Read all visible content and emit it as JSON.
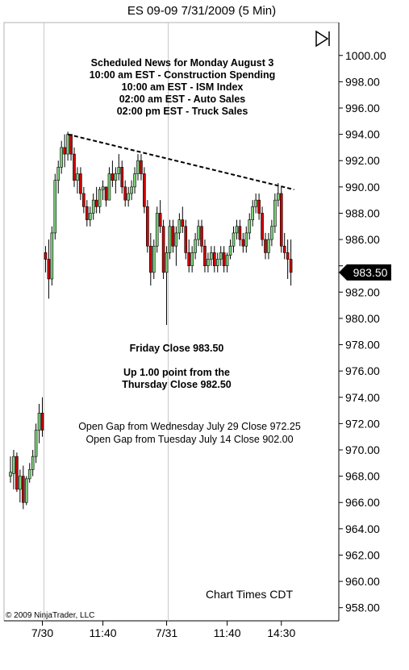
{
  "window": {
    "title": "ES 09-09  7/31/2009 (5 Min)"
  },
  "toolbar": {
    "play_icon": "skip-forward-icon"
  },
  "news": [
    "Scheduled News for Monday August 3",
    "10:00 am EST - Construction Spending",
    "10:00 am EST - ISM Index",
    "02:00 am EST - Auto Sales",
    "02:00 pm EST - Truck Sales"
  ],
  "close_note": "Friday Close 983.50",
  "change_note": [
    "Up 1.00 point from the",
    "Thursday Close 982.50"
  ],
  "gap_notes": [
    "Open Gap from Wednesday July 29 Close 972.25",
    "Open Gap from Tuesday July 14 Close 902.00"
  ],
  "chart_times": "Chart Times CDT",
  "copyright": "© 2009 NinjaTrader, LLC",
  "last_price": "983.50",
  "colors": {
    "up": "#7ed07e",
    "down": "#cc0000",
    "wick": "#000000",
    "price_tag": "#000000"
  },
  "chart_data": {
    "type": "candlestick",
    "title": "ES 09-09  7/31/2009 (5 Min)",
    "ylim": [
      957,
      1002.5
    ],
    "y_ticks": [
      "958.00",
      "960.00",
      "962.00",
      "964.00",
      "966.00",
      "968.00",
      "970.00",
      "972.00",
      "974.00",
      "976.00",
      "978.00",
      "980.00",
      "982.00",
      "984.00",
      "986.00",
      "988.00",
      "990.00",
      "992.00",
      "994.00",
      "996.00",
      "998.00",
      "1000.00"
    ],
    "x_ticks": [
      {
        "label": "7/30",
        "bar": 10
      },
      {
        "label": "11:40",
        "bar": 29
      },
      {
        "label": "7/31",
        "bar": 49
      },
      {
        "label": "11:40",
        "bar": 68
      },
      {
        "label": "14:30",
        "bar": 85
      }
    ],
    "day_separators": [
      10.5,
      49.5
    ],
    "trendline": {
      "style": "dashed",
      "from": {
        "bar": 18,
        "price": 994.0
      },
      "to": {
        "bar": 89,
        "price": 989.8
      }
    },
    "bars": [
      [
        968.0,
        969.5,
        967.5,
        968.3
      ],
      [
        968.2,
        970.0,
        967.0,
        969.5
      ],
      [
        969.5,
        969.8,
        966.8,
        967.0
      ],
      [
        967.0,
        968.5,
        966.0,
        968.0
      ],
      [
        968.0,
        968.8,
        965.5,
        966.0
      ],
      [
        966.0,
        968.0,
        965.8,
        967.8
      ],
      [
        967.8,
        969.0,
        967.5,
        968.5
      ],
      [
        968.5,
        970.0,
        968.0,
        969.5
      ],
      [
        969.5,
        972.0,
        969.0,
        971.5
      ],
      [
        971.5,
        973.5,
        970.5,
        972.8
      ],
      [
        972.8,
        974.0,
        971.0,
        971.5
      ],
      [
        985.0,
        985.5,
        983.5,
        984.5
      ],
      [
        984.5,
        986.0,
        981.5,
        983.0
      ],
      [
        983.0,
        987.0,
        982.5,
        986.5
      ],
      [
        986.5,
        991.0,
        986.0,
        990.5
      ],
      [
        990.5,
        992.0,
        989.5,
        991.5
      ],
      [
        991.5,
        993.5,
        991.0,
        993.0
      ],
      [
        993.0,
        994.0,
        991.5,
        992.5
      ],
      [
        992.5,
        994.2,
        992.0,
        994.0
      ],
      [
        994.0,
        994.0,
        992.0,
        992.5
      ],
      [
        992.5,
        993.0,
        990.0,
        990.5
      ],
      [
        990.5,
        991.5,
        989.5,
        991.0
      ],
      [
        991.0,
        991.5,
        989.0,
        989.5
      ],
      [
        989.5,
        990.0,
        988.0,
        988.5
      ],
      [
        988.5,
        989.0,
        987.0,
        987.5
      ],
      [
        987.5,
        988.5,
        987.0,
        988.0
      ],
      [
        988.0,
        989.5,
        987.5,
        989.0
      ],
      [
        989.0,
        990.0,
        988.0,
        988.5
      ],
      [
        988.5,
        990.0,
        988.0,
        989.8
      ],
      [
        989.8,
        990.5,
        989.0,
        990.0
      ],
      [
        990.0,
        990.0,
        988.5,
        989.0
      ],
      [
        989.0,
        991.5,
        989.0,
        991.0
      ],
      [
        991.0,
        992.0,
        990.0,
        990.5
      ],
      [
        990.5,
        991.5,
        989.5,
        991.0
      ],
      [
        991.0,
        992.5,
        990.5,
        991.5
      ],
      [
        991.5,
        992.0,
        989.5,
        990.0
      ],
      [
        990.0,
        990.5,
        988.5,
        989.0
      ],
      [
        989.0,
        990.0,
        988.5,
        989.5
      ],
      [
        989.5,
        990.5,
        989.0,
        990.0
      ],
      [
        990.0,
        991.5,
        989.5,
        991.0
      ],
      [
        991.0,
        992.5,
        990.5,
        992.0
      ],
      [
        992.0,
        992.5,
        990.5,
        991.0
      ],
      [
        991.0,
        991.5,
        988.0,
        988.5
      ],
      [
        988.5,
        989.0,
        985.0,
        985.5
      ],
      [
        985.5,
        986.5,
        982.5,
        983.5
      ],
      [
        983.5,
        986.0,
        983.0,
        985.5
      ],
      [
        985.5,
        988.5,
        985.0,
        988.0
      ],
      [
        988.0,
        989.0,
        986.5,
        987.0
      ],
      [
        987.0,
        987.5,
        983.0,
        983.5
      ],
      [
        983.5,
        985.5,
        979.5,
        985.0
      ],
      [
        985.0,
        987.5,
        984.5,
        987.0
      ],
      [
        987.0,
        987.5,
        985.0,
        985.5
      ],
      [
        985.5,
        987.0,
        984.0,
        986.5
      ],
      [
        986.5,
        988.0,
        986.0,
        987.5
      ],
      [
        987.5,
        988.5,
        986.5,
        987.0
      ],
      [
        987.0,
        987.5,
        984.5,
        985.0
      ],
      [
        985.0,
        986.0,
        983.5,
        984.0
      ],
      [
        984.0,
        985.5,
        983.5,
        985.0
      ],
      [
        985.0,
        986.5,
        984.5,
        986.0
      ],
      [
        986.0,
        987.5,
        985.5,
        987.0
      ],
      [
        987.0,
        987.5,
        985.0,
        985.5
      ],
      [
        985.5,
        986.0,
        983.5,
        984.0
      ],
      [
        984.0,
        985.0,
        983.5,
        984.5
      ],
      [
        984.5,
        985.5,
        984.0,
        985.0
      ],
      [
        985.0,
        985.5,
        983.5,
        984.0
      ],
      [
        984.0,
        985.0,
        983.5,
        984.5
      ],
      [
        984.5,
        985.5,
        984.0,
        985.0
      ],
      [
        985.0,
        985.5,
        983.5,
        984.0
      ],
      [
        984.0,
        985.0,
        983.5,
        984.8
      ],
      [
        984.8,
        986.0,
        984.5,
        985.5
      ],
      [
        985.5,
        987.0,
        985.0,
        986.5
      ],
      [
        986.5,
        987.5,
        986.0,
        987.0
      ],
      [
        987.0,
        987.5,
        985.5,
        986.0
      ],
      [
        986.0,
        986.5,
        985.0,
        985.5
      ],
      [
        985.5,
        987.0,
        985.0,
        986.5
      ],
      [
        986.5,
        988.0,
        986.0,
        987.5
      ],
      [
        987.5,
        989.0,
        987.0,
        988.5
      ],
      [
        988.5,
        989.5,
        988.0,
        989.0
      ],
      [
        989.0,
        989.5,
        987.5,
        988.0
      ],
      [
        988.0,
        988.5,
        985.5,
        986.0
      ],
      [
        986.0,
        986.5,
        984.5,
        985.0
      ],
      [
        985.0,
        986.5,
        984.5,
        986.0
      ],
      [
        986.0,
        987.5,
        985.5,
        987.0
      ],
      [
        987.0,
        989.5,
        986.5,
        989.0
      ],
      [
        989.0,
        990.3,
        988.5,
        989.5
      ],
      [
        989.5,
        990.0,
        985.0,
        985.5
      ],
      [
        985.5,
        986.5,
        984.5,
        985.0
      ],
      [
        985.0,
        986.0,
        983.0,
        984.5
      ],
      [
        984.5,
        986.0,
        982.5,
        983.5
      ]
    ]
  }
}
